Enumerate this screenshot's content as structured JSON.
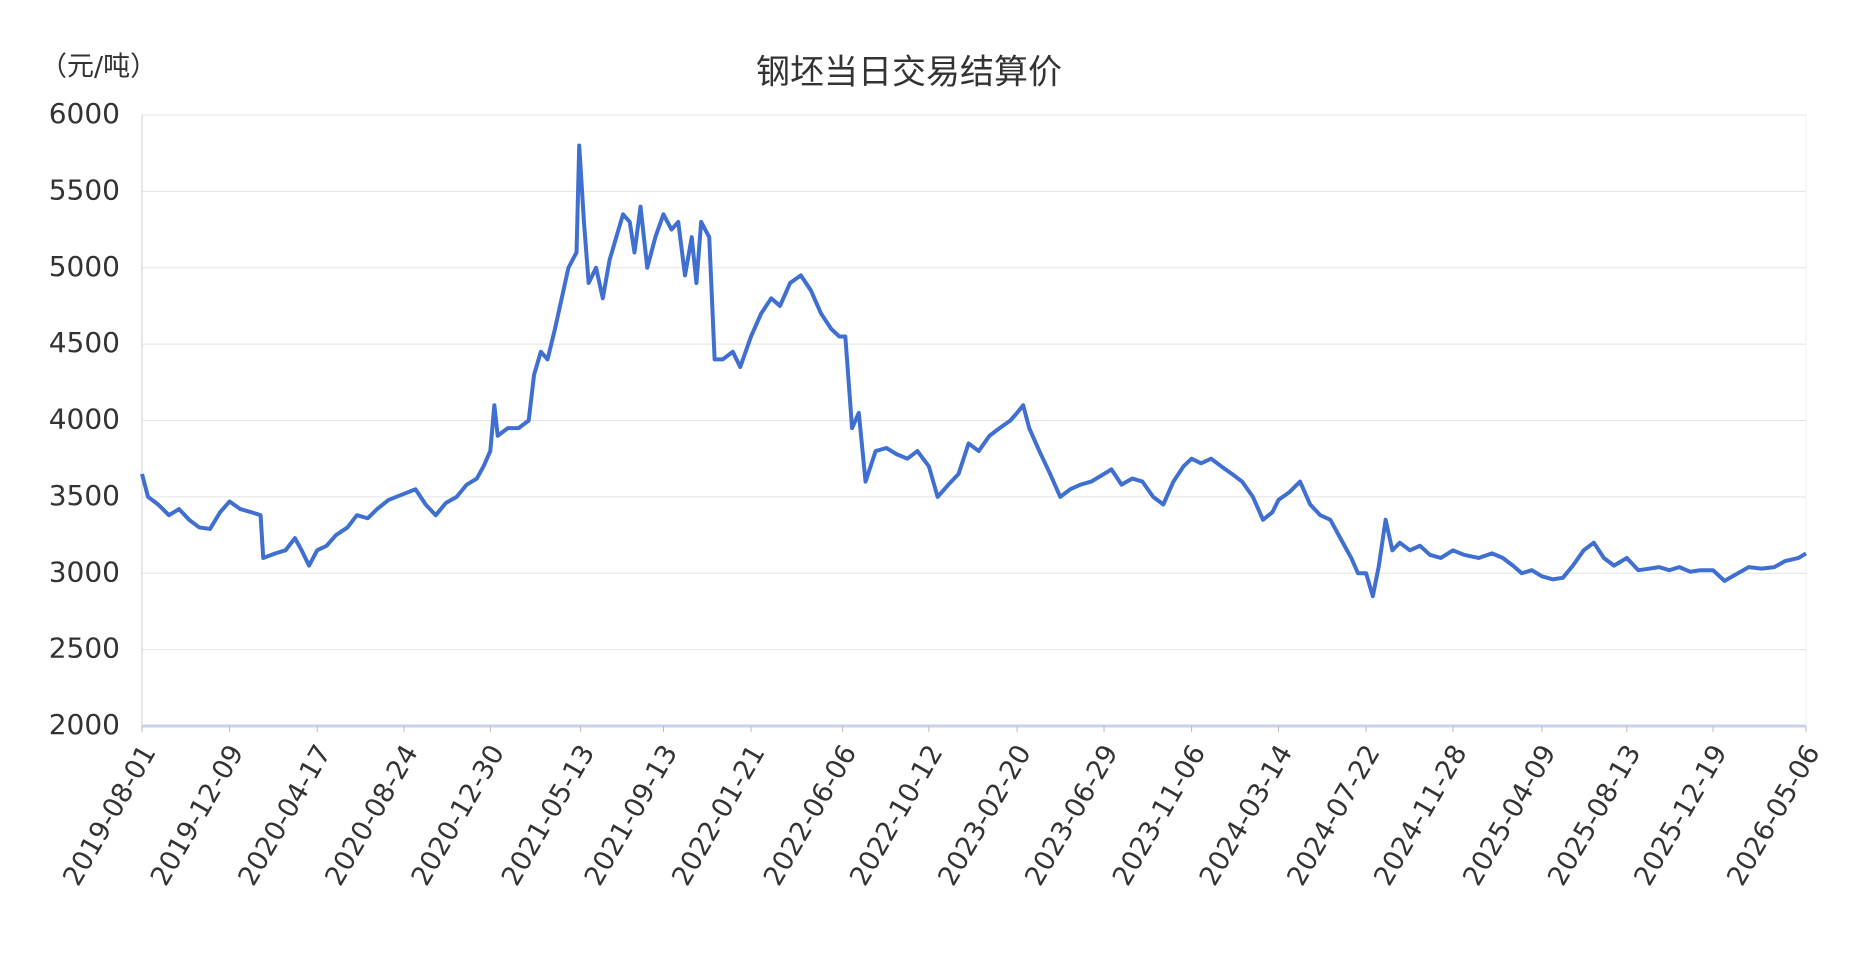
{
  "chart_data": {
    "type": "line",
    "title": "钢坯当日交易结算价",
    "y_axis_label": "（元/吨）",
    "x": [
      "2019-08-01",
      "2019-08-10",
      "2019-08-25",
      "2019-09-10",
      "2019-09-25",
      "2019-10-10",
      "2019-10-25",
      "2019-11-10",
      "2019-11-25",
      "2019-12-09",
      "2019-12-25",
      "2020-01-10",
      "2020-01-24",
      "2020-01-28",
      "2020-02-15",
      "2020-03-01",
      "2020-03-15",
      "2020-03-25",
      "2020-04-05",
      "2020-04-17",
      "2020-05-01",
      "2020-05-15",
      "2020-06-01",
      "2020-06-15",
      "2020-07-01",
      "2020-07-15",
      "2020-08-01",
      "2020-08-24",
      "2020-09-10",
      "2020-09-25",
      "2020-10-10",
      "2020-10-25",
      "2020-11-10",
      "2020-11-25",
      "2020-12-10",
      "2020-12-20",
      "2020-12-30",
      "2021-01-05",
      "2021-01-10",
      "2021-01-25",
      "2021-02-10",
      "2021-02-25",
      "2021-03-05",
      "2021-03-15",
      "2021-03-25",
      "2021-04-05",
      "2021-04-15",
      "2021-04-25",
      "2021-05-01",
      "2021-05-07",
      "2021-05-11",
      "2021-05-18",
      "2021-05-25",
      "2021-06-05",
      "2021-06-15",
      "2021-06-25",
      "2021-07-05",
      "2021-07-15",
      "2021-07-25",
      "2021-08-01",
      "2021-08-10",
      "2021-08-20",
      "2021-09-01",
      "2021-09-13",
      "2021-09-25",
      "2021-10-05",
      "2021-10-15",
      "2021-10-25",
      "2021-11-01",
      "2021-11-08",
      "2021-11-20",
      "2021-11-28",
      "2021-12-10",
      "2021-12-25",
      "2022-01-05",
      "2022-01-21",
      "2022-02-05",
      "2022-02-20",
      "2022-03-05",
      "2022-03-20",
      "2022-04-05",
      "2022-04-20",
      "2022-05-05",
      "2022-05-20",
      "2022-06-01",
      "2022-06-10",
      "2022-06-20",
      "2022-06-30",
      "2022-07-10",
      "2022-07-25",
      "2022-08-10",
      "2022-08-25",
      "2022-09-10",
      "2022-09-25",
      "2022-10-12",
      "2022-10-25",
      "2022-11-10",
      "2022-11-25",
      "2022-12-10",
      "2022-12-25",
      "2023-01-10",
      "2023-01-25",
      "2023-02-10",
      "2023-02-20",
      "2023-03-01",
      "2023-03-10",
      "2023-03-25",
      "2023-04-10",
      "2023-04-25",
      "2023-05-10",
      "2023-05-25",
      "2023-06-10",
      "2023-06-29",
      "2023-07-10",
      "2023-07-25",
      "2023-08-10",
      "2023-08-25",
      "2023-09-10",
      "2023-09-25",
      "2023-10-10",
      "2023-10-25",
      "2023-11-06",
      "2023-11-20",
      "2023-12-05",
      "2023-12-20",
      "2024-01-05",
      "2024-01-20",
      "2024-02-05",
      "2024-02-20",
      "2024-03-05",
      "2024-03-14",
      "2024-03-30",
      "2024-04-15",
      "2024-04-30",
      "2024-05-15",
      "2024-05-30",
      "2024-06-15",
      "2024-06-30",
      "2024-07-10",
      "2024-07-22",
      "2024-08-01",
      "2024-08-10",
      "2024-08-20",
      "2024-08-30",
      "2024-09-10",
      "2024-09-25",
      "2024-10-10",
      "2024-10-25",
      "2024-11-10",
      "2024-11-28",
      "2024-12-15",
      "2025-01-05",
      "2025-01-25",
      "2025-02-10",
      "2025-02-25",
      "2025-03-10",
      "2025-03-25",
      "2025-04-09",
      "2025-04-25",
      "2025-05-10",
      "2025-05-25",
      "2025-06-10",
      "2025-06-25",
      "2025-07-10",
      "2025-07-25",
      "2025-08-13",
      "2025-08-30",
      "2025-09-15",
      "2025-09-30",
      "2025-10-15",
      "2025-10-30",
      "2025-11-15",
      "2025-11-30",
      "2025-12-19",
      "2026-01-05",
      "2026-01-25",
      "2026-02-10",
      "2026-03-01",
      "2026-03-20",
      "2026-04-05",
      "2026-04-25",
      "2026-05-06"
    ],
    "series": [
      {
        "name": "钢坯当日交易结算价",
        "color": "#3f6fd1",
        "values": [
          3650,
          3500,
          3450,
          3380,
          3420,
          3350,
          3300,
          3290,
          3400,
          3470,
          3420,
          3400,
          3380,
          3100,
          3130,
          3150,
          3230,
          3150,
          3050,
          3150,
          3180,
          3250,
          3300,
          3380,
          3360,
          3420,
          3480,
          3520,
          3550,
          3450,
          3380,
          3460,
          3500,
          3580,
          3620,
          3700,
          3800,
          4100,
          3900,
          3950,
          3950,
          4000,
          4300,
          4450,
          4400,
          4600,
          4800,
          5000,
          5050,
          5100,
          5800,
          5300,
          4900,
          5000,
          4800,
          5050,
          5200,
          5350,
          5300,
          5100,
          5400,
          5000,
          5200,
          5350,
          5250,
          5300,
          4950,
          5200,
          4900,
          5300,
          5200,
          4400,
          4400,
          4450,
          4350,
          4550,
          4700,
          4800,
          4750,
          4900,
          4950,
          4850,
          4700,
          4600,
          4550,
          4550,
          3950,
          4050,
          3600,
          3800,
          3820,
          3780,
          3750,
          3800,
          3700,
          3500,
          3580,
          3650,
          3850,
          3800,
          3900,
          3950,
          4000,
          4050,
          4100,
          3950,
          3800,
          3650,
          3500,
          3550,
          3580,
          3600,
          3650,
          3680,
          3580,
          3620,
          3600,
          3500,
          3450,
          3600,
          3700,
          3750,
          3720,
          3750,
          3700,
          3650,
          3600,
          3500,
          3350,
          3400,
          3480,
          3530,
          3600,
          3450,
          3380,
          3350,
          3220,
          3100,
          3000,
          3000,
          2850,
          3050,
          3350,
          3150,
          3200,
          3150,
          3180,
          3120,
          3100,
          3150,
          3120,
          3100,
          3130,
          3100,
          3050,
          3000,
          3020,
          2980,
          2960,
          2970,
          3050,
          3150,
          3200,
          3100,
          3050,
          3100,
          3020,
          3030,
          3040,
          3020,
          3040,
          3010,
          3020,
          3020,
          2950,
          3000,
          3040,
          3030,
          3040,
          3080,
          3100,
          3130
        ]
      }
    ],
    "xlim": [
      "2019-08-01",
      "2026-05-06"
    ],
    "xticks": [
      "2019-08-01",
      "2019-12-09",
      "2020-04-17",
      "2020-08-24",
      "2020-12-30",
      "2021-05-13",
      "2021-09-13",
      "2022-01-21",
      "2022-06-06",
      "2022-10-12",
      "2023-02-20",
      "2023-06-29",
      "2023-11-06",
      "2024-03-14",
      "2024-07-22",
      "2024-11-28",
      "2025-04-09",
      "2025-08-13",
      "2025-12-19",
      "2026-05-06"
    ],
    "ylim": [
      2000,
      6000
    ],
    "yticks": [
      2000,
      2500,
      3000,
      3500,
      4000,
      4500,
      5000,
      5500,
      6000
    ],
    "grid": true
  }
}
